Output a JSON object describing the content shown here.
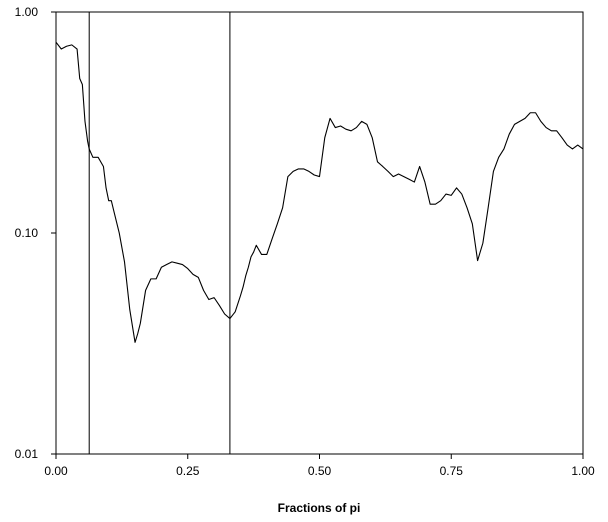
{
  "chart_data": {
    "type": "line",
    "title": "",
    "xlabel": "Fractions of pi",
    "ylabel": "",
    "xlim": [
      0,
      1
    ],
    "ylim": [
      0.01,
      1.0
    ],
    "y_scale": "log",
    "grid": false,
    "x_ticks": [
      {
        "value": 0.0,
        "label": "0.00"
      },
      {
        "value": 0.25,
        "label": "0.25"
      },
      {
        "value": 0.5,
        "label": "0.50"
      },
      {
        "value": 0.75,
        "label": "0.75"
      },
      {
        "value": 1.0,
        "label": "1.00"
      }
    ],
    "y_ticks": [
      {
        "value": 1.0,
        "label": "1.00"
      },
      {
        "value": 0.1,
        "label": "0.10"
      },
      {
        "value": 0.01,
        "label": "0.01"
      }
    ],
    "vertical_lines": [
      0.063,
      0.33
    ],
    "line_color": "#000000",
    "series": [
      {
        "x": [
          0.0,
          0.01,
          0.02,
          0.03,
          0.04,
          0.045,
          0.05,
          0.055,
          0.06,
          0.063,
          0.07,
          0.08,
          0.09,
          0.095,
          0.1,
          0.105,
          0.11,
          0.12,
          0.13,
          0.14,
          0.15,
          0.155,
          0.16,
          0.17,
          0.18,
          0.19,
          0.2,
          0.21,
          0.22,
          0.23,
          0.24,
          0.25,
          0.26,
          0.27,
          0.28,
          0.29,
          0.3,
          0.31,
          0.32,
          0.33,
          0.34,
          0.35,
          0.355,
          0.36,
          0.365,
          0.37,
          0.375,
          0.38,
          0.39,
          0.4,
          0.41,
          0.42,
          0.43,
          0.44,
          0.45,
          0.46,
          0.47,
          0.48,
          0.49,
          0.5,
          0.51,
          0.52,
          0.53,
          0.54,
          0.55,
          0.56,
          0.57,
          0.58,
          0.59,
          0.6,
          0.61,
          0.62,
          0.63,
          0.64,
          0.65,
          0.66,
          0.67,
          0.68,
          0.69,
          0.7,
          0.71,
          0.72,
          0.73,
          0.74,
          0.75,
          0.76,
          0.77,
          0.78,
          0.79,
          0.8,
          0.81,
          0.82,
          0.83,
          0.84,
          0.85,
          0.86,
          0.87,
          0.88,
          0.89,
          0.9,
          0.91,
          0.92,
          0.93,
          0.94,
          0.95,
          0.96,
          0.97,
          0.98,
          0.99,
          1.0
        ],
        "y": [
          0.73,
          0.68,
          0.7,
          0.71,
          0.68,
          0.5,
          0.47,
          0.32,
          0.26,
          0.24,
          0.22,
          0.22,
          0.2,
          0.16,
          0.14,
          0.14,
          0.125,
          0.1,
          0.074,
          0.045,
          0.032,
          0.035,
          0.039,
          0.055,
          0.062,
          0.062,
          0.07,
          0.072,
          0.074,
          0.073,
          0.072,
          0.069,
          0.065,
          0.063,
          0.055,
          0.05,
          0.051,
          0.047,
          0.043,
          0.041,
          0.044,
          0.052,
          0.057,
          0.064,
          0.07,
          0.078,
          0.082,
          0.088,
          0.08,
          0.08,
          0.094,
          0.11,
          0.13,
          0.18,
          0.19,
          0.195,
          0.195,
          0.19,
          0.183,
          0.18,
          0.27,
          0.33,
          0.3,
          0.305,
          0.295,
          0.29,
          0.3,
          0.32,
          0.31,
          0.27,
          0.21,
          0.2,
          0.19,
          0.18,
          0.185,
          0.18,
          0.175,
          0.17,
          0.2,
          0.17,
          0.135,
          0.135,
          0.14,
          0.15,
          0.148,
          0.16,
          0.15,
          0.13,
          0.11,
          0.075,
          0.09,
          0.13,
          0.19,
          0.22,
          0.24,
          0.28,
          0.31,
          0.32,
          0.33,
          0.35,
          0.35,
          0.32,
          0.3,
          0.29,
          0.29,
          0.27,
          0.25,
          0.24,
          0.25,
          0.24
        ]
      }
    ]
  }
}
